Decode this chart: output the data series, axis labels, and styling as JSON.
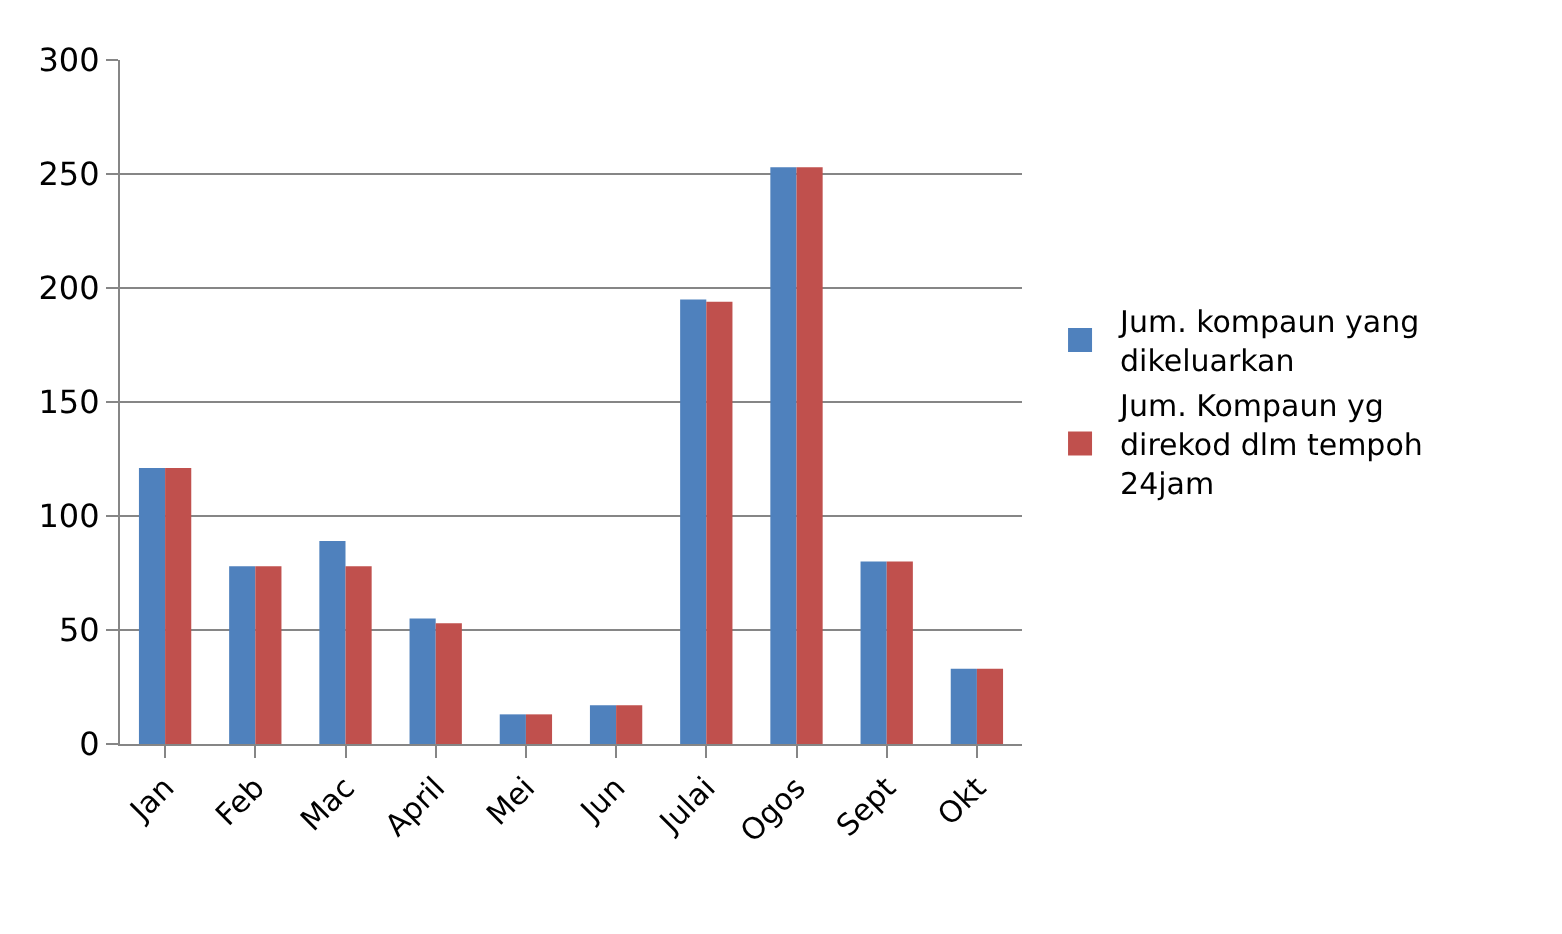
{
  "chart_data": {
    "type": "bar",
    "categories": [
      "Jan",
      "Feb",
      "Mac",
      "April",
      "Mei",
      "Jun",
      "Julai",
      "Ogos",
      "Sept",
      "Okt"
    ],
    "series": [
      {
        "name": "Jum. kompaun yang dikeluarkan",
        "color": "#4f81bd",
        "values": [
          121,
          78,
          89,
          55,
          13,
          17,
          195,
          253,
          80,
          33
        ]
      },
      {
        "name": "Jum. Kompaun yg direkod dlm tempoh 24jam",
        "color": "#c0504d",
        "values": [
          121,
          78,
          78,
          53,
          13,
          17,
          194,
          253,
          80,
          33
        ]
      }
    ],
    "ylim": [
      0,
      300
    ],
    "yticks": [
      0,
      50,
      100,
      150,
      200,
      250,
      300
    ],
    "grid": "y",
    "legend": "right"
  }
}
